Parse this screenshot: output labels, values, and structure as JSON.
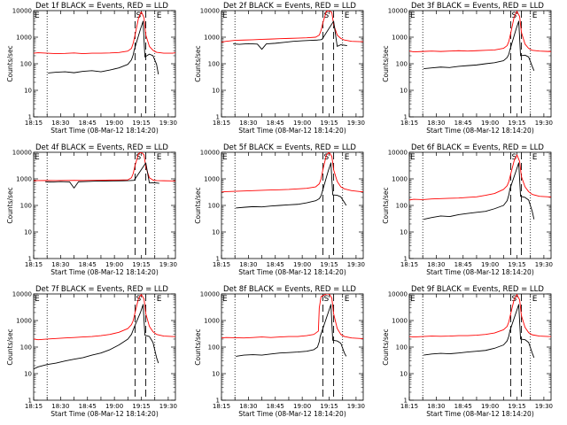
{
  "chart_data": {
    "type": "line",
    "layout": "3x3 grid",
    "yscale": "log",
    "ylim": [
      1,
      10000
    ],
    "yticks": [
      "1",
      "10",
      "100",
      "1000",
      "10000"
    ],
    "ylabel": "Counts/sec",
    "xlabel": "Start Time (08-Mar-12 18:14:20)",
    "xlim": [
      "18:15",
      "20:53"
    ],
    "xticks": [
      "18:15",
      "18:30",
      "18:45",
      "19:00",
      "19:15",
      "19:30",
      "19:45"
    ],
    "legend_words": "BLACK = Events, RED = LLD",
    "series_colors": {
      "events": "#000000",
      "lld": "#ff0000"
    },
    "markers": {
      "dotted": [
        "18:30",
        "20:30"
      ],
      "dashed": [
        "20:08",
        "20:20"
      ],
      "labels": [
        "E",
        "S",
        "E"
      ],
      "label_times": [
        "18:16",
        "20:09",
        "20:32"
      ]
    },
    "panels": [
      {
        "title": "Det 1f BLACK = Events, RED = LLD",
        "events": {
          "x": [
            "18:31",
            "18:40",
            "18:50",
            "19:00",
            "19:10",
            "19:20",
            "19:30",
            "19:40",
            "19:50",
            "20:00",
            "20:04",
            "20:06",
            "20:07",
            "20:14",
            "20:17",
            "20:19",
            "20:24",
            "20:28",
            "20:32",
            "20:34"
          ],
          "y": [
            45,
            48,
            50,
            46,
            52,
            55,
            50,
            58,
            70,
            95,
            140,
            220,
            320,
            2000,
            4000,
            180,
            230,
            200,
            95,
            40
          ]
        },
        "lld": {
          "x": [
            "18:15",
            "18:20",
            "18:30",
            "18:40",
            "18:50",
            "19:00",
            "19:10",
            "19:20",
            "19:30",
            "19:40",
            "19:50",
            "20:00",
            "20:04",
            "20:06",
            "20:08",
            "20:12",
            "20:15",
            "20:18",
            "20:20",
            "20:24",
            "20:28",
            "20:32",
            "20:40",
            "20:50",
            "20:53"
          ],
          "y": [
            250,
            260,
            250,
            240,
            245,
            255,
            240,
            250,
            250,
            255,
            265,
            300,
            380,
            600,
            1200,
            5500,
            9000,
            5500,
            1200,
            450,
            320,
            270,
            250,
            250,
            260
          ]
        }
      },
      {
        "title": "Det 2f BLACK = Events, RED = LLD",
        "events": {
          "x": [
            "18:28",
            "18:35",
            "18:45",
            "18:55",
            "19:00",
            "19:05",
            "19:15",
            "19:25",
            "19:35",
            "19:45",
            "19:55",
            "20:02",
            "20:05",
            "20:07",
            "20:20",
            "20:24",
            "20:28",
            "20:32",
            "20:35"
          ],
          "y": [
            560,
            540,
            570,
            550,
            350,
            560,
            590,
            640,
            700,
            730,
            760,
            780,
            800,
            820,
            4000,
            450,
            520,
            500,
            480
          ]
        },
        "lld": {
          "x": [
            "18:15",
            "18:20",
            "18:30",
            "18:40",
            "18:50",
            "19:00",
            "19:10",
            "19:20",
            "19:30",
            "19:40",
            "19:50",
            "20:00",
            "20:04",
            "20:06",
            "20:08",
            "20:12",
            "20:15",
            "20:18",
            "20:20",
            "20:24",
            "20:28",
            "20:32",
            "20:40",
            "20:50",
            "20:53"
          ],
          "y": [
            650,
            700,
            760,
            780,
            800,
            830,
            850,
            880,
            900,
            920,
            950,
            1000,
            1200,
            1800,
            3500,
            9500,
            10000,
            8500,
            3000,
            1200,
            900,
            780,
            700,
            680,
            680
          ]
        }
      },
      {
        "title": "Det 3f BLACK = Events, RED = LLD",
        "events": {
          "x": [
            "18:31",
            "18:40",
            "18:50",
            "19:00",
            "19:10",
            "19:20",
            "19:30",
            "19:40",
            "19:50",
            "20:00",
            "20:04",
            "20:06",
            "20:07",
            "20:14",
            "20:17",
            "20:19",
            "20:24",
            "20:28",
            "20:32",
            "20:34"
          ],
          "y": [
            65,
            70,
            75,
            72,
            80,
            85,
            90,
            100,
            110,
            130,
            170,
            230,
            320,
            2000,
            4000,
            200,
            210,
            180,
            80,
            55
          ]
        },
        "lld": {
          "x": [
            "18:15",
            "18:20",
            "18:30",
            "18:40",
            "18:50",
            "19:00",
            "19:10",
            "19:20",
            "19:30",
            "19:40",
            "19:50",
            "20:00",
            "20:04",
            "20:06",
            "20:08",
            "20:12",
            "20:15",
            "20:18",
            "20:20",
            "20:24",
            "20:28",
            "20:32",
            "20:40",
            "20:50",
            "20:53"
          ],
          "y": [
            300,
            280,
            290,
            300,
            290,
            300,
            310,
            300,
            310,
            320,
            330,
            380,
            480,
            700,
            1400,
            6000,
            9500,
            6000,
            1500,
            550,
            380,
            320,
            300,
            290,
            290
          ]
        }
      },
      {
        "title": "Det 4f BLACK = Events, RED = LLD",
        "events": {
          "x": [
            "18:28",
            "18:35",
            "18:45",
            "18:55",
            "19:00",
            "19:05",
            "19:15",
            "19:25",
            "19:35",
            "19:45",
            "19:55",
            "20:02",
            "20:05",
            "20:07",
            "20:20",
            "20:24",
            "20:28",
            "20:32",
            "20:35"
          ],
          "y": [
            780,
            760,
            790,
            770,
            450,
            780,
            800,
            820,
            830,
            840,
            850,
            860,
            870,
            880,
            4000,
            700,
            720,
            700,
            680
          ]
        },
        "lld": {
          "x": [
            "18:15",
            "18:20",
            "18:30",
            "18:40",
            "18:50",
            "19:00",
            "19:10",
            "19:20",
            "19:30",
            "19:40",
            "19:50",
            "20:00",
            "20:04",
            "20:06",
            "20:08",
            "20:12",
            "20:15",
            "20:18",
            "20:20",
            "20:24",
            "20:28",
            "20:32",
            "20:40",
            "20:50",
            "20:53"
          ],
          "y": [
            850,
            860,
            870,
            860,
            870,
            880,
            870,
            880,
            890,
            900,
            900,
            920,
            1100,
            1600,
            3200,
            9000,
            10000,
            8000,
            2800,
            1100,
            900,
            860,
            850,
            840,
            840
          ]
        }
      },
      {
        "title": "Det 5f BLACK = Events, RED = LLD",
        "events": {
          "x": [
            "18:31",
            "18:40",
            "18:50",
            "19:00",
            "19:10",
            "19:20",
            "19:30",
            "19:40",
            "19:50",
            "20:00",
            "20:04",
            "20:06",
            "20:07",
            "20:14",
            "20:17",
            "20:19",
            "20:24",
            "20:28",
            "20:32",
            "20:34"
          ],
          "y": [
            80,
            85,
            90,
            88,
            95,
            100,
            105,
            110,
            125,
            150,
            180,
            230,
            300,
            2000,
            4000,
            250,
            240,
            210,
            130,
            100
          ]
        },
        "lld": {
          "x": [
            "18:15",
            "18:20",
            "18:30",
            "18:40",
            "18:50",
            "19:00",
            "19:10",
            "19:20",
            "19:30",
            "19:40",
            "19:50",
            "20:00",
            "20:04",
            "20:06",
            "20:08",
            "20:12",
            "20:15",
            "20:18",
            "20:20",
            "20:24",
            "20:28",
            "20:32",
            "20:40",
            "20:50",
            "20:53"
          ],
          "y": [
            320,
            330,
            340,
            350,
            360,
            370,
            380,
            390,
            400,
            420,
            440,
            500,
            650,
            1000,
            2200,
            8000,
            10000,
            7000,
            2200,
            800,
            500,
            420,
            360,
            330,
            330
          ]
        }
      },
      {
        "title": "Det 6f BLACK = Events, RED = LLD",
        "events": {
          "x": [
            "18:31",
            "18:40",
            "18:50",
            "19:00",
            "19:10",
            "19:20",
            "19:30",
            "19:40",
            "19:50",
            "20:00",
            "20:04",
            "20:06",
            "20:07",
            "20:14",
            "20:17",
            "20:19",
            "20:24",
            "20:28",
            "20:32",
            "20:34"
          ],
          "y": [
            30,
            35,
            40,
            38,
            45,
            50,
            55,
            60,
            75,
            100,
            150,
            250,
            400,
            2000,
            4000,
            220,
            200,
            160,
            60,
            30
          ]
        },
        "lld": {
          "x": [
            "18:15",
            "18:20",
            "18:30",
            "18:40",
            "18:50",
            "19:00",
            "19:10",
            "19:20",
            "19:30",
            "19:40",
            "19:50",
            "20:00",
            "20:04",
            "20:06",
            "20:08",
            "20:12",
            "20:15",
            "20:18",
            "20:20",
            "20:24",
            "20:28",
            "20:32",
            "20:40",
            "20:50",
            "20:53"
          ],
          "y": [
            160,
            170,
            165,
            175,
            180,
            185,
            190,
            200,
            210,
            240,
            280,
            400,
            550,
            800,
            1500,
            5000,
            8000,
            4500,
            1200,
            500,
            330,
            260,
            220,
            210,
            210
          ]
        }
      },
      {
        "title": "Det 7f BLACK = Events, RED = LLD",
        "events": {
          "x": [
            "18:15",
            "18:20",
            "18:30",
            "18:40",
            "18:50",
            "19:00",
            "19:10",
            "19:20",
            "19:30",
            "19:40",
            "19:50",
            "20:00",
            "20:04",
            "20:06",
            "20:07",
            "20:14",
            "20:17",
            "20:19",
            "20:24",
            "20:28",
            "20:32",
            "20:34"
          ],
          "y": [
            15,
            18,
            22,
            25,
            30,
            35,
            40,
            50,
            60,
            80,
            120,
            200,
            300,
            450,
            550,
            2000,
            4000,
            280,
            250,
            150,
            40,
            25
          ]
        },
        "lld": {
          "x": [
            "18:15",
            "18:20",
            "18:30",
            "18:40",
            "18:50",
            "19:00",
            "19:10",
            "19:20",
            "19:30",
            "19:40",
            "19:50",
            "20:00",
            "20:04",
            "20:06",
            "20:08",
            "20:12",
            "20:15",
            "20:18",
            "20:20",
            "20:24",
            "20:28",
            "20:32",
            "20:40",
            "20:50",
            "20:53"
          ],
          "y": [
            200,
            190,
            200,
            210,
            220,
            230,
            240,
            250,
            270,
            300,
            360,
            500,
            700,
            1000,
            2000,
            7000,
            9500,
            6500,
            1800,
            600,
            380,
            300,
            260,
            250,
            250
          ]
        }
      },
      {
        "title": "Det 8f BLACK = Events, RED = LLD",
        "events": {
          "x": [
            "18:31",
            "18:40",
            "18:50",
            "19:00",
            "19:10",
            "19:20",
            "19:30",
            "19:40",
            "19:50",
            "19:58",
            "20:02",
            "20:04",
            "20:05",
            "20:14",
            "20:17",
            "20:19",
            "20:24",
            "20:28",
            "20:32",
            "20:34"
          ],
          "y": [
            45,
            50,
            52,
            50,
            55,
            60,
            62,
            65,
            70,
            80,
            100,
            160,
            250,
            2000,
            4000,
            180,
            170,
            140,
            60,
            45
          ]
        },
        "lld": {
          "x": [
            "18:15",
            "18:20",
            "18:30",
            "18:40",
            "18:50",
            "19:00",
            "19:10",
            "19:20",
            "19:30",
            "19:40",
            "19:50",
            "19:58",
            "20:03",
            "20:04",
            "20:06",
            "20:12",
            "20:15",
            "20:18",
            "20:20",
            "20:24",
            "20:28",
            "20:32",
            "20:40",
            "20:50",
            "20:53"
          ],
          "y": [
            220,
            230,
            225,
            220,
            230,
            240,
            230,
            240,
            250,
            250,
            270,
            300,
            400,
            3000,
            8000,
            10000,
            10000,
            7000,
            1800,
            500,
            300,
            250,
            220,
            210,
            210
          ]
        }
      },
      {
        "title": "Det 9f BLACK = Events, RED = LLD",
        "events": {
          "x": [
            "18:31",
            "18:40",
            "18:50",
            "19:00",
            "19:10",
            "19:20",
            "19:30",
            "19:40",
            "19:50",
            "20:00",
            "20:04",
            "20:06",
            "20:07",
            "20:14",
            "20:17",
            "20:19",
            "20:24",
            "20:28",
            "20:32",
            "20:34"
          ],
          "y": [
            50,
            55,
            58,
            56,
            60,
            65,
            70,
            75,
            90,
            120,
            170,
            260,
            400,
            2000,
            4000,
            200,
            190,
            150,
            60,
            40
          ]
        },
        "lld": {
          "x": [
            "18:15",
            "18:20",
            "18:30",
            "18:40",
            "18:50",
            "19:00",
            "19:10",
            "19:20",
            "19:30",
            "19:40",
            "19:50",
            "20:00",
            "20:04",
            "20:06",
            "20:08",
            "20:12",
            "20:15",
            "20:18",
            "20:20",
            "20:24",
            "20:28",
            "20:32",
            "20:40",
            "20:50",
            "20:53"
          ],
          "y": [
            250,
            240,
            250,
            260,
            255,
            260,
            270,
            270,
            280,
            300,
            340,
            450,
            600,
            900,
            1800,
            6500,
            9500,
            6000,
            1500,
            550,
            350,
            290,
            260,
            250,
            250
          ]
        }
      }
    ]
  }
}
